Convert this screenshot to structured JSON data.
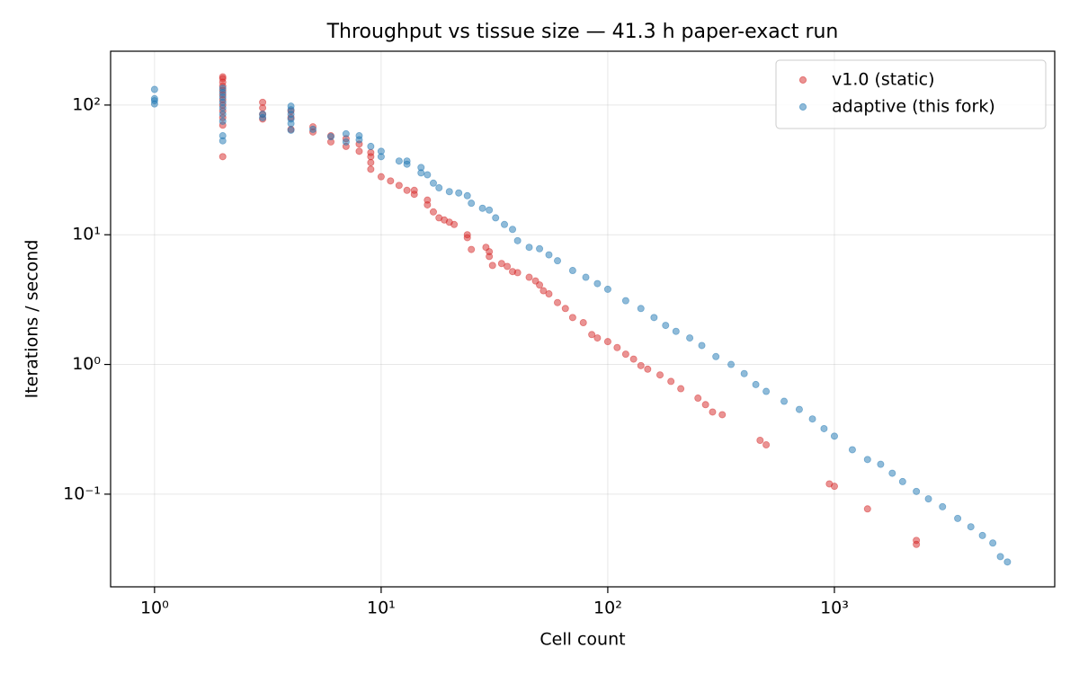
{
  "chart_data": {
    "type": "scatter",
    "title": "Throughput vs tissue size — 41.3 h paper-exact run",
    "x_label": "Cell count",
    "y_label": "Iterations / second",
    "xscale": "log",
    "yscale": "log",
    "grid": true,
    "legend": "upper right",
    "xlim": [
      0.64,
      9380
    ],
    "ylim": [
      0.0193,
      260
    ],
    "xticks": [
      {
        "value": 1,
        "label": "10⁰"
      },
      {
        "value": 10,
        "label": "10¹"
      },
      {
        "value": 100,
        "label": "10²"
      },
      {
        "value": 1000,
        "label": "10³"
      }
    ],
    "yticks": [
      {
        "value": 0.1,
        "label": "10⁻¹"
      },
      {
        "value": 1,
        "label": "10⁰"
      },
      {
        "value": 10,
        "label": "10¹"
      },
      {
        "value": 100,
        "label": "10²"
      }
    ],
    "series": [
      {
        "name": "v1.0 (static)",
        "color": "#d62728",
        "x": [
          2,
          2,
          2,
          2,
          2,
          2,
          2,
          2,
          2,
          2,
          2,
          2,
          3,
          3,
          3,
          3,
          4,
          4,
          4,
          5,
          5,
          6,
          6,
          7,
          7,
          8,
          8,
          9,
          9,
          9,
          9,
          10,
          11,
          12,
          13,
          14,
          14,
          16,
          16,
          17,
          18,
          19,
          20,
          21,
          24,
          24,
          25,
          29,
          30,
          30,
          31,
          34,
          36,
          38,
          40,
          45,
          48,
          50,
          52,
          55,
          60,
          65,
          70,
          78,
          85,
          90,
          100,
          110,
          120,
          130,
          140,
          150,
          170,
          190,
          210,
          250,
          270,
          290,
          320,
          470,
          500,
          950,
          1000,
          1400,
          2300,
          2300
        ],
        "values": [
          40,
          70,
          80,
          90,
          100,
          110,
          120,
          130,
          140,
          150,
          160,
          165,
          78,
          85,
          95,
          105,
          65,
          80,
          90,
          62,
          68,
          52,
          58,
          48,
          55,
          44,
          50,
          32,
          36,
          40,
          43,
          28,
          26,
          24,
          22,
          20.5,
          22,
          17,
          18.5,
          15,
          13.5,
          13,
          12.5,
          12,
          9.5,
          10,
          7.7,
          8,
          6.8,
          7.4,
          5.8,
          6,
          5.7,
          5.2,
          5.1,
          4.7,
          4.4,
          4.1,
          3.7,
          3.5,
          3.0,
          2.7,
          2.3,
          2.1,
          1.7,
          1.6,
          1.5,
          1.35,
          1.2,
          1.1,
          0.98,
          0.92,
          0.83,
          0.74,
          0.65,
          0.55,
          0.49,
          0.43,
          0.41,
          0.26,
          0.24,
          0.12,
          0.115,
          0.077,
          0.041,
          0.044
        ]
      },
      {
        "name": "adaptive (this fork)",
        "color": "#1f77b4",
        "x": [
          1,
          1,
          1,
          1,
          2,
          2,
          2,
          2,
          2,
          2,
          2,
          2,
          2,
          3,
          3,
          4,
          4,
          4,
          4,
          4,
          4,
          5,
          6,
          7,
          7,
          8,
          8,
          9,
          10,
          10,
          12,
          13,
          13,
          15,
          15,
          16,
          17,
          18,
          20,
          22,
          24,
          25,
          28,
          30,
          32,
          35,
          38,
          40,
          45,
          50,
          55,
          60,
          70,
          80,
          90,
          100,
          120,
          140,
          160,
          180,
          200,
          230,
          260,
          300,
          350,
          400,
          450,
          500,
          600,
          700,
          800,
          900,
          1000,
          1200,
          1400,
          1600,
          1800,
          2000,
          2300,
          2600,
          3000,
          3500,
          4000,
          4500,
          5000,
          5400,
          5800
        ],
        "values": [
          102,
          108,
          112,
          132,
          53,
          58,
          75,
          85,
          95,
          105,
          115,
          125,
          135,
          80,
          85,
          64,
          72,
          78,
          85,
          92,
          98,
          65,
          57,
          52,
          60,
          54,
          58,
          48,
          40,
          44,
          37,
          35,
          37,
          30,
          33,
          29,
          25,
          23,
          21.5,
          21,
          20,
          17.5,
          16,
          15.5,
          13.5,
          12,
          11,
          9,
          8,
          7.8,
          7,
          6.3,
          5.3,
          4.7,
          4.2,
          3.8,
          3.1,
          2.7,
          2.3,
          2.0,
          1.8,
          1.6,
          1.4,
          1.15,
          1.0,
          0.85,
          0.7,
          0.62,
          0.52,
          0.45,
          0.38,
          0.32,
          0.28,
          0.22,
          0.185,
          0.17,
          0.145,
          0.125,
          0.105,
          0.092,
          0.08,
          0.065,
          0.056,
          0.048,
          0.042,
          0.033,
          0.03
        ]
      }
    ]
  }
}
